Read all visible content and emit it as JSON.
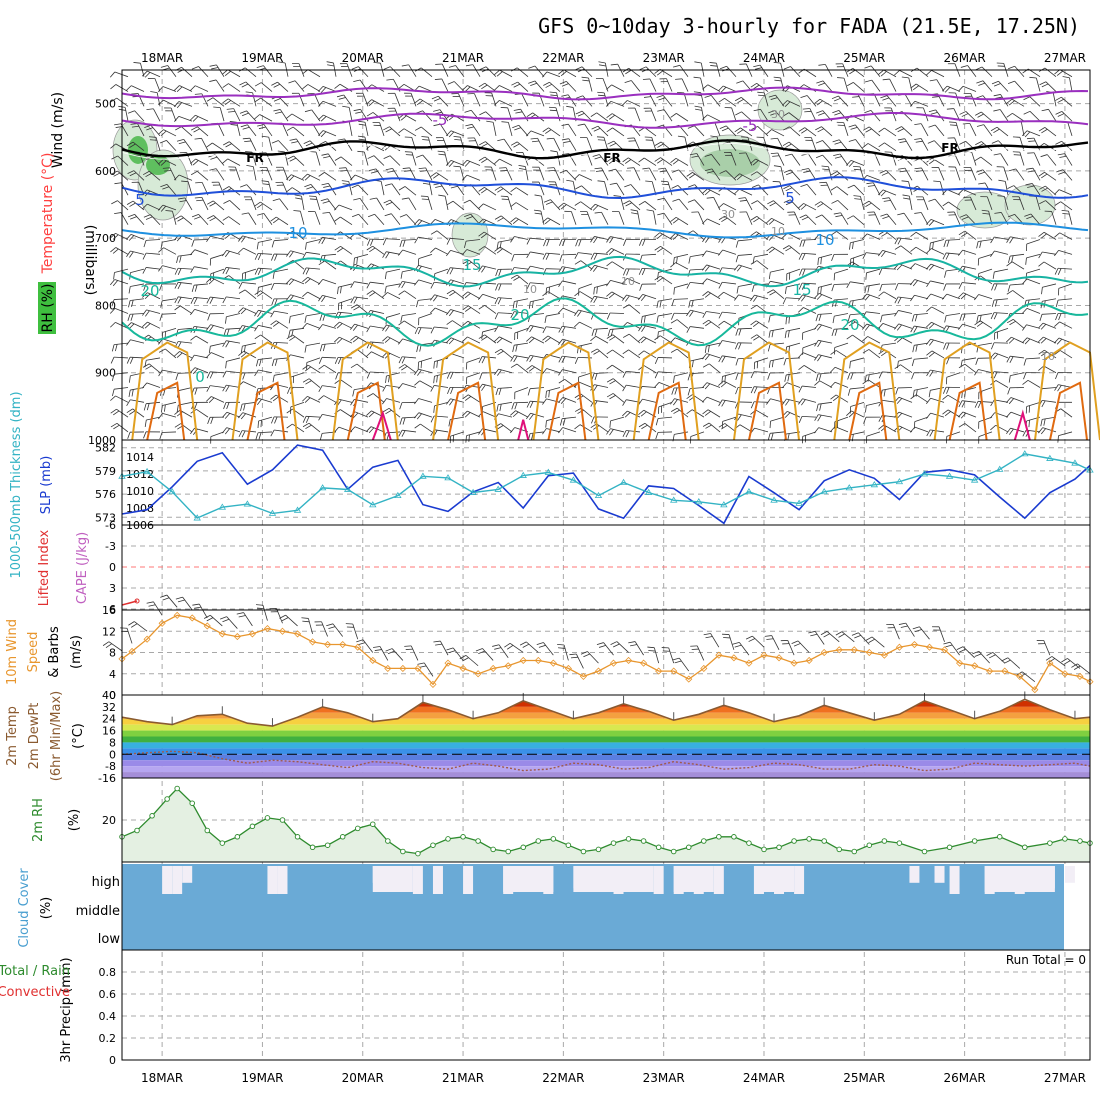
{
  "title": "GFS 0~10day 3-hourly for FADA (21.5E, 17.25N)",
  "x_axis": {
    "dates": [
      "18MAR",
      "19MAR",
      "20MAR",
      "21MAR",
      "22MAR",
      "23MAR",
      "24MAR",
      "25MAR",
      "26MAR",
      "27MAR"
    ],
    "start_day": 17.6,
    "end_day": 27.25,
    "step_hours": 3
  },
  "colors": {
    "frame": "#000000",
    "grid": "#a8a8a8",
    "slp": "#1a3bd0",
    "thickness": "#33b3c4",
    "wind_speed": "#e8962e",
    "rh": "#2e8b2e",
    "cloud": "#6aaad6",
    "cloud_gap": "#f2eef6"
  },
  "panels": {
    "upper_air": {
      "ylabel_wind": "Wind (m/s)",
      "ylabel_temp": "Temperature (°C)",
      "ylabel_rh": "RH (%)",
      "ylabel_units": "(millibars)",
      "ylim": [
        1000,
        450
      ],
      "yticks": [
        "500",
        "600",
        "700",
        "800",
        "900",
        "1000"
      ],
      "freezing_label": "FR",
      "temp_labels": [
        "-5",
        "-5",
        "5",
        "5",
        "10",
        "10",
        "15",
        "15",
        "20",
        "20",
        "20",
        "0"
      ],
      "rh_labels": [
        "30",
        "30",
        "10",
        "10",
        "10",
        "10"
      ]
    },
    "slp_thickness": {
      "ylabel_left": "1000-500mb Thickness (dm)",
      "ylabel_right": "SLP (mb)",
      "left_ticks": [
        "582",
        "579",
        "576",
        "573"
      ],
      "right_ticks": [
        "1014",
        "1012",
        "1010",
        "1008",
        "1006"
      ]
    },
    "stability": {
      "ylabel_left": "Lifted Index",
      "ylabel_right": "CAPE (J/kg)",
      "ticks": [
        "-6",
        "-3",
        "0",
        "3",
        "6"
      ]
    },
    "wind10m": {
      "ylabel": "10m Wind Speed & Barbs (m/s)",
      "ticks": [
        "16",
        "12",
        "8",
        "4",
        "0"
      ]
    },
    "temp2m": {
      "ylabel": "2m Temp 2m DewPt (6hr Min/Max) (°C)",
      "ticks": [
        "40",
        "32",
        "24",
        "16",
        "8",
        "0",
        "-8",
        "-16"
      ]
    },
    "rh2m": {
      "ylabel": "2m RH (%)",
      "ticks": [
        "20"
      ]
    },
    "cloud": {
      "ylabel": "Cloud Cover (%)",
      "levels": [
        "high",
        "middle",
        "low"
      ]
    },
    "precip": {
      "ylabel_left": "Total / Rain",
      "ylabel_conv": "Convective",
      "ylabel": "3hr Precip (mm)",
      "ticks": [
        "0.8",
        "0.6",
        "0.4",
        "0.2",
        "0"
      ],
      "run_total": "Run Total = 0"
    }
  },
  "chart_data": [
    {
      "type": "line",
      "title": "GFS 0~10day 3-hourly for FADA (21.5E, 17.25N)",
      "panel": "Sea level pressure and 1000-500mb thickness",
      "x_unit": "day of March",
      "series": [
        {
          "name": "SLP (mb)",
          "x": [
            17.6,
            17.85,
            18.1,
            18.35,
            18.6,
            18.85,
            19.1,
            19.35,
            19.6,
            19.85,
            20.1,
            20.35,
            20.6,
            20.85,
            21.1,
            21.35,
            21.6,
            21.85,
            22.1,
            22.35,
            22.6,
            22.85,
            23.1,
            23.35,
            23.6,
            23.85,
            24.1,
            24.35,
            24.6,
            24.85,
            25.1,
            25.35,
            25.6,
            25.85,
            26.1,
            26.35,
            26.6,
            26.85,
            27.1,
            27.25
          ],
          "values": [
            1007.3,
            1007.8,
            1010.5,
            1013.5,
            1014.5,
            1010.8,
            1012.5,
            1015.4,
            1014.8,
            1010.2,
            1012.8,
            1013.6,
            1008.4,
            1007.6,
            1009.9,
            1011.0,
            1008.0,
            1011.8,
            1012.1,
            1007.9,
            1006.8,
            1010.6,
            1010.3,
            1008.3,
            1006.2,
            1011.7,
            1009.8,
            1007.8,
            1011.2,
            1012.5,
            1011.5,
            1009.0,
            1012.2,
            1012.5,
            1011.9,
            1009.3,
            1006.8,
            1009.8,
            1011.4,
            1013.0
          ]
        },
        {
          "name": "1000-500mb Thickness (dm)",
          "x": [
            17.6,
            17.85,
            18.1,
            18.35,
            18.6,
            18.85,
            19.1,
            19.35,
            19.6,
            19.85,
            20.1,
            20.35,
            20.6,
            20.85,
            21.1,
            21.35,
            21.6,
            21.85,
            22.1,
            22.35,
            22.6,
            22.85,
            23.1,
            23.35,
            23.6,
            23.85,
            24.1,
            24.35,
            24.6,
            24.85,
            25.1,
            25.35,
            25.6,
            25.85,
            26.1,
            26.35,
            26.6,
            26.85,
            27.1,
            27.25
          ],
          "values": [
            578.3,
            578.9,
            576.3,
            572.9,
            574.3,
            574.7,
            573.5,
            573.9,
            576.8,
            576.6,
            574.6,
            575.8,
            578.3,
            578.1,
            576.2,
            576.6,
            578.4,
            578.8,
            577.8,
            575.8,
            577.5,
            576.2,
            575.2,
            575.0,
            574.6,
            576.3,
            575.2,
            574.8,
            576.3,
            576.8,
            577.2,
            577.6,
            578.6,
            578.3,
            577.8,
            579.2,
            581.2,
            580.6,
            580.0,
            579.1
          ]
        }
      ],
      "ylim_left": [
        572,
        583
      ],
      "ylim_right": [
        1006,
        1016
      ],
      "ylabel_left": "1000-500mb Thickness (dm)",
      "ylabel_right": "SLP (mb)",
      "grid": true
    },
    {
      "type": "line",
      "panel": "10m wind speed",
      "x_unit": "day of March",
      "series": [
        {
          "name": "10m Wind Speed (m/s)",
          "x": [
            17.6,
            17.7,
            17.85,
            18.0,
            18.15,
            18.3,
            18.45,
            18.6,
            18.75,
            18.9,
            19.05,
            19.2,
            19.35,
            19.5,
            19.65,
            19.8,
            19.95,
            20.1,
            20.25,
            20.4,
            20.55,
            20.7,
            20.85,
            21.0,
            21.15,
            21.3,
            21.45,
            21.6,
            21.75,
            21.9,
            22.05,
            22.2,
            22.35,
            22.5,
            22.65,
            22.8,
            22.95,
            23.1,
            23.25,
            23.4,
            23.55,
            23.7,
            23.85,
            24.0,
            24.15,
            24.3,
            24.45,
            24.6,
            24.75,
            24.9,
            25.05,
            25.2,
            25.35,
            25.5,
            25.65,
            25.8,
            25.95,
            26.1,
            26.25,
            26.4,
            26.55,
            26.7,
            26.85,
            27.0,
            27.15,
            27.25
          ],
          "values": [
            6.8,
            8.2,
            10.5,
            13.5,
            15.0,
            14.5,
            13.0,
            11.5,
            11.0,
            11.5,
            12.5,
            12.0,
            11.5,
            10.0,
            9.5,
            9.5,
            9.0,
            6.5,
            5.0,
            5.0,
            5.0,
            2.0,
            6.0,
            5.0,
            4.0,
            5.0,
            5.5,
            6.5,
            6.5,
            6.0,
            5.0,
            3.5,
            4.5,
            6.0,
            6.5,
            6.0,
            4.5,
            4.5,
            3.0,
            5.0,
            7.5,
            7.0,
            6.0,
            7.5,
            7.0,
            6.0,
            6.5,
            8.0,
            8.5,
            8.5,
            8.0,
            7.5,
            9.0,
            9.5,
            9.0,
            8.5,
            6.0,
            5.5,
            4.5,
            4.5,
            3.5,
            1.0,
            6.0,
            4.0,
            3.5,
            2.5
          ]
        }
      ],
      "ylim": [
        0,
        16
      ],
      "ylabel": "10m Wind Speed & Barbs (m/s)",
      "grid": true
    },
    {
      "type": "area",
      "panel": "2m temperature",
      "x_unit": "day of March",
      "series": [
        {
          "name": "2m Temp (°C)",
          "x": [
            17.6,
            17.85,
            18.1,
            18.35,
            18.6,
            18.85,
            19.1,
            19.35,
            19.6,
            19.85,
            20.1,
            20.35,
            20.6,
            20.85,
            21.1,
            21.35,
            21.6,
            21.85,
            22.1,
            22.35,
            22.6,
            22.85,
            23.1,
            23.35,
            23.6,
            23.85,
            24.1,
            24.35,
            24.6,
            24.85,
            25.1,
            25.35,
            25.6,
            25.85,
            26.1,
            26.35,
            26.6,
            26.85,
            27.1,
            27.25
          ],
          "values": [
            25,
            22,
            20,
            26,
            27,
            21,
            19,
            25,
            32,
            28,
            22,
            24,
            35,
            30,
            24,
            28,
            36,
            30,
            24,
            28,
            34,
            29,
            23,
            27,
            33,
            28,
            22,
            26,
            33,
            28,
            23,
            27,
            36,
            30,
            24,
            29,
            37,
            30,
            24,
            25
          ]
        },
        {
          "name": "2m DewPt (°C)",
          "x": [
            17.6,
            17.85,
            18.1,
            18.35,
            18.6,
            18.85,
            19.1,
            19.35,
            19.6,
            19.85,
            20.1,
            20.35,
            20.6,
            20.85,
            21.1,
            21.35,
            21.6,
            21.85,
            22.1,
            22.35,
            22.6,
            22.85,
            23.1,
            23.35,
            23.6,
            23.85,
            24.1,
            24.35,
            24.6,
            24.85,
            25.1,
            25.35,
            25.6,
            25.85,
            26.1,
            26.35,
            26.6,
            26.85,
            27.1,
            27.25
          ],
          "values": [
            0,
            1,
            2,
            1,
            -3,
            -6,
            -4,
            -5,
            -7,
            -9,
            -5,
            -6,
            -9,
            -10,
            -6,
            -8,
            -11,
            -10,
            -6,
            -7,
            -10,
            -9,
            -5,
            -7,
            -10,
            -9,
            -6,
            -7,
            -10,
            -10,
            -7,
            -8,
            -11,
            -10,
            -6,
            -7,
            -8,
            -7,
            -6,
            -8
          ]
        }
      ],
      "ylim": [
        -16,
        40
      ],
      "ylabel": "2m Temp 2m DewPt (6hr Min/Max) (°C)",
      "grid": true
    },
    {
      "type": "area",
      "panel": "2m relative humidity",
      "x_unit": "day of March",
      "series": [
        {
          "name": "2m RH (%)",
          "x": [
            17.6,
            17.75,
            17.9,
            18.05,
            18.15,
            18.3,
            18.45,
            18.6,
            18.75,
            18.9,
            19.05,
            19.2,
            19.35,
            19.5,
            19.65,
            19.8,
            19.95,
            20.1,
            20.25,
            20.4,
            20.55,
            20.7,
            20.85,
            21.0,
            21.15,
            21.3,
            21.45,
            21.6,
            21.75,
            21.9,
            22.05,
            22.2,
            22.35,
            22.5,
            22.65,
            22.8,
            22.95,
            23.1,
            23.25,
            23.4,
            23.55,
            23.7,
            23.85,
            24.0,
            24.15,
            24.3,
            24.45,
            24.6,
            24.75,
            24.9,
            25.05,
            25.2,
            25.35,
            25.6,
            25.85,
            26.1,
            26.35,
            26.6,
            26.85,
            27.0,
            27.15,
            27.25
          ],
          "values": [
            12,
            15,
            22,
            30,
            35,
            28,
            15,
            9,
            12,
            17,
            21,
            20,
            12,
            7,
            8,
            12,
            16,
            18,
            10,
            5,
            4,
            8,
            11,
            12,
            10,
            6,
            5,
            7,
            10,
            11,
            8,
            5,
            6,
            9,
            11,
            10,
            7,
            5,
            7,
            10,
            12,
            12,
            9,
            6,
            7,
            10,
            11,
            10,
            6,
            5,
            8,
            10,
            9,
            5,
            7,
            10,
            12,
            7,
            9,
            11,
            10,
            9
          ]
        }
      ],
      "ylim": [
        0,
        40
      ],
      "ylabel": "2m RH (%)",
      "grid": true
    },
    {
      "type": "area",
      "panel": "Cloud cover",
      "x_unit": "day of March",
      "series": [
        {
          "name": "High cloud gap (%)",
          "x": [
            18.0,
            18.1,
            18.2,
            19.05,
            19.15,
            20.1,
            20.3,
            20.5,
            20.7,
            21.0,
            21.4,
            21.8,
            22.1,
            22.5,
            22.9,
            23.1,
            23.3,
            23.5,
            23.9,
            24.1,
            24.3,
            25.45,
            25.7,
            25.85,
            26.2,
            26.5,
            26.8,
            27.0
          ],
          "values": [
            100,
            100,
            60,
            100,
            100,
            60,
            60,
            100,
            100,
            100,
            100,
            100,
            80,
            100,
            100,
            100,
            100,
            100,
            100,
            100,
            100,
            60,
            60,
            100,
            100,
            100,
            80,
            60
          ]
        }
      ],
      "ylabel": "Cloud Cover (%)"
    },
    {
      "type": "bar",
      "panel": "3hr precipitation",
      "x_unit": "day of March",
      "series": [
        {
          "name": "3hr Precip (mm)",
          "x": [
            18.0,
            19.0,
            20.0,
            21.0,
            22.0,
            23.0,
            24.0,
            25.0,
            26.0,
            27.0
          ],
          "values": [
            0,
            0,
            0,
            0,
            0,
            0,
            0,
            0,
            0,
            0
          ]
        }
      ],
      "ylim": [
        0,
        1
      ],
      "ylabel": "3hr Precip (mm)",
      "grid": true
    }
  ]
}
